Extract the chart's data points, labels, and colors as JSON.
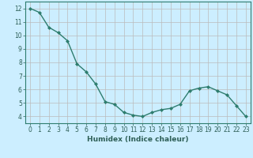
{
  "x": [
    0,
    1,
    2,
    3,
    4,
    5,
    6,
    7,
    8,
    9,
    10,
    11,
    12,
    13,
    14,
    15,
    16,
    17,
    18,
    19,
    20,
    21,
    22,
    23
  ],
  "y": [
    12.0,
    11.7,
    10.6,
    10.2,
    9.6,
    7.9,
    7.3,
    6.4,
    5.1,
    4.9,
    4.3,
    4.1,
    4.0,
    4.3,
    4.5,
    4.6,
    4.9,
    5.9,
    6.1,
    6.2,
    5.9,
    5.6,
    4.8,
    4.0
  ],
  "line_color": "#2e7d6e",
  "marker": "D",
  "marker_size": 2.0,
  "bg_color": "#cceeff",
  "grid_color": "#bbbbbb",
  "axis_color": "#2e7d6e",
  "xlabel": "Humidex (Indice chaleur)",
  "ylim": [
    3.5,
    12.5
  ],
  "xlim": [
    -0.5,
    23.5
  ],
  "yticks": [
    4,
    5,
    6,
    7,
    8,
    9,
    10,
    11,
    12
  ],
  "xticks": [
    0,
    1,
    2,
    3,
    4,
    5,
    6,
    7,
    8,
    9,
    10,
    11,
    12,
    13,
    14,
    15,
    16,
    17,
    18,
    19,
    20,
    21,
    22,
    23
  ],
  "font_color": "#2e5f57",
  "linewidth": 1.0,
  "xlabel_fontsize": 6.5,
  "tick_fontsize": 5.5
}
